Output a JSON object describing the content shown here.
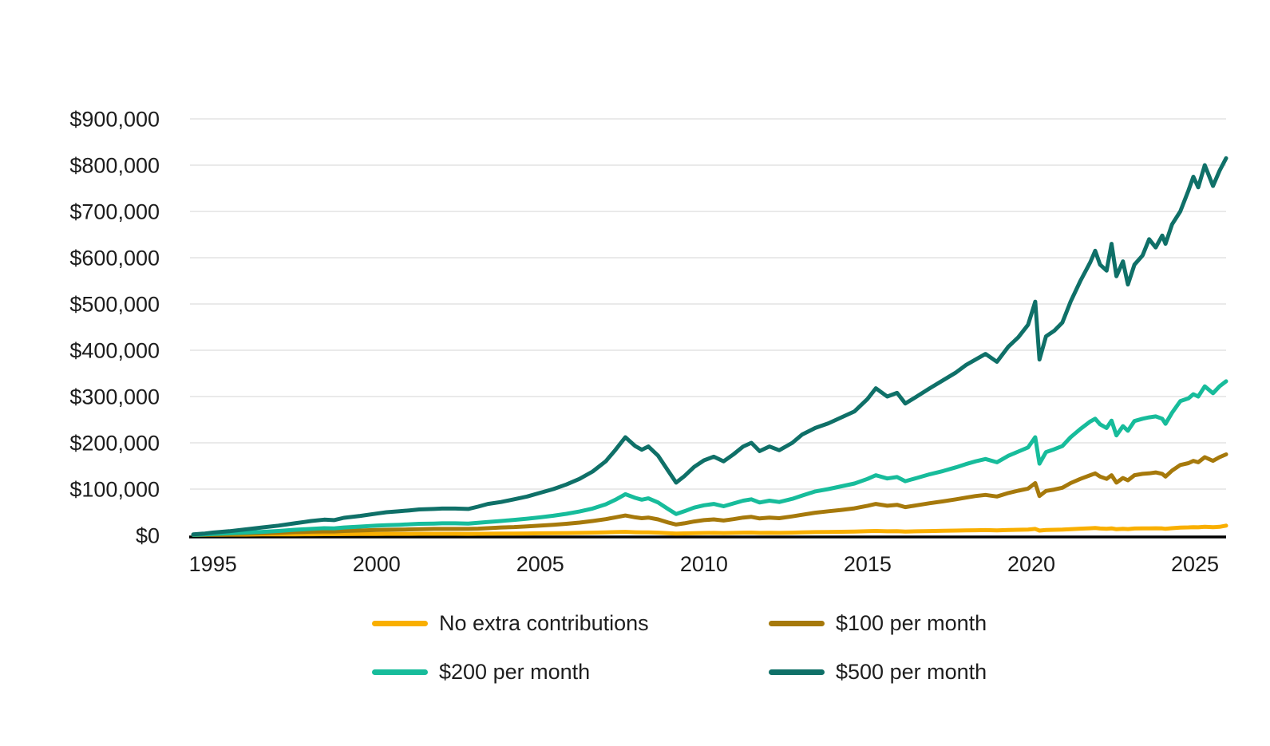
{
  "chart_data": {
    "type": "line",
    "title": "",
    "xlabel": "",
    "ylabel": "",
    "grid": "horizontal",
    "legend_position": "bottom",
    "x_axis": {
      "range": [
        1994.3,
        2025.95
      ],
      "ticks": [
        1995,
        2000,
        2005,
        2010,
        2015,
        2020,
        2025
      ],
      "tick_labels": [
        "1995",
        "2000",
        "2005",
        "2010",
        "2015",
        "2020",
        "2025"
      ]
    },
    "y_axis": {
      "range": [
        0,
        900000
      ],
      "tick_values": [
        0,
        100000,
        200000,
        300000,
        400000,
        500000,
        600000,
        700000,
        800000,
        900000
      ],
      "tick_labels": [
        "$0",
        "$100,000",
        "$200,000",
        "$300,000",
        "$400,000",
        "$500,000",
        "$600,000",
        "$700,000",
        "$800,000",
        "$900,000"
      ]
    },
    "x": [
      1994.4,
      1994.75,
      1995,
      1995.5,
      1996,
      1996.5,
      1997,
      1997.5,
      1998,
      1998.4,
      1998.7,
      1999,
      1999.5,
      2000,
      2000.3,
      2000.7,
      2001,
      2001.3,
      2001.75,
      2002,
      2002.4,
      2002.8,
      2003.1,
      2003.4,
      2003.8,
      2004.2,
      2004.6,
      2005,
      2005.4,
      2005.8,
      2006.2,
      2006.6,
      2007,
      2007.3,
      2007.6,
      2007.9,
      2008.1,
      2008.3,
      2008.6,
      2008.9,
      2009.15,
      2009.4,
      2009.7,
      2010,
      2010.3,
      2010.6,
      2010.9,
      2011.2,
      2011.45,
      2011.7,
      2012,
      2012.3,
      2012.7,
      2013,
      2013.4,
      2013.8,
      2014.2,
      2014.6,
      2015,
      2015.25,
      2015.6,
      2015.9,
      2016.15,
      2016.5,
      2016.9,
      2017.3,
      2017.7,
      2018,
      2018.3,
      2018.6,
      2018.95,
      2019.3,
      2019.6,
      2019.9,
      2020.12,
      2020.25,
      2020.45,
      2020.7,
      2020.95,
      2021.2,
      2021.5,
      2021.8,
      2021.95,
      2022.1,
      2022.3,
      2022.45,
      2022.6,
      2022.8,
      2022.95,
      2023.15,
      2023.4,
      2023.6,
      2023.8,
      2024,
      2024.1,
      2024.3,
      2024.55,
      2024.8,
      2024.95,
      2025.1,
      2025.3,
      2025.55,
      2025.75,
      2025.95
    ],
    "series": [
      {
        "name": "No extra contributions",
        "color": "#F9AF00",
        "values": [
          1200,
          1300,
          1500,
          1700,
          1800,
          2000,
          2100,
          2300,
          2400,
          2500,
          2500,
          2700,
          2900,
          3100,
          3200,
          3300,
          3300,
          3400,
          3400,
          3400,
          3400,
          3300,
          3400,
          3600,
          3800,
          4000,
          4200,
          4400,
          4700,
          5000,
          5400,
          5900,
          6500,
          7000,
          7600,
          6800,
          6400,
          6600,
          5800,
          4700,
          3900,
          4300,
          4800,
          5200,
          5400,
          5000,
          5400,
          5800,
          6000,
          5400,
          5700,
          5400,
          5900,
          6400,
          7000,
          7400,
          7800,
          8200,
          8900,
          9400,
          8800,
          9000,
          8300,
          8800,
          9300,
          9800,
          10300,
          10700,
          11000,
          11300,
          10700,
          11600,
          12100,
          12600,
          14000,
          10400,
          11700,
          12000,
          12400,
          13500,
          14500,
          15400,
          15800,
          14900,
          14200,
          15100,
          13200,
          14300,
          13600,
          14800,
          15100,
          15200,
          15300,
          15000,
          14200,
          15600,
          16900,
          17300,
          17800,
          17400,
          18600,
          17600,
          18500,
          21000
        ]
      },
      {
        "name": "$100 per month",
        "color": "#A6790B",
        "values": [
          1000,
          1500,
          2000,
          3000,
          3500,
          4500,
          5500,
          7000,
          8000,
          8500,
          8500,
          9500,
          10500,
          11500,
          12000,
          12500,
          13000,
          13500,
          14000,
          14000,
          14000,
          14000,
          14500,
          15500,
          17000,
          18000,
          19500,
          21000,
          23000,
          25000,
          27500,
          31000,
          35000,
          39000,
          43000,
          39000,
          37000,
          38500,
          34500,
          28000,
          23500,
          26000,
          30000,
          33000,
          34500,
          32000,
          35000,
          38500,
          40000,
          36500,
          38500,
          37000,
          41000,
          44500,
          49000,
          52000,
          55000,
          58500,
          64000,
          68000,
          64000,
          66000,
          61000,
          65000,
          69500,
          73500,
          78000,
          81500,
          85000,
          87500,
          84000,
          91500,
          96500,
          101000,
          113000,
          85000,
          96000,
          99000,
          103000,
          113000,
          122000,
          130000,
          134000,
          127000,
          122000,
          130000,
          114000,
          124000,
          119000,
          130000,
          133000,
          134000,
          136000,
          133000,
          127000,
          140000,
          152000,
          156000,
          161000,
          158000,
          169000,
          161000,
          169000,
          175000
        ]
      },
      {
        "name": "$200 per month",
        "color": "#17BC9B",
        "values": [
          1000,
          2000,
          3000,
          4500,
          6000,
          7500,
          9500,
          12000,
          14000,
          15500,
          15000,
          17000,
          19000,
          21000,
          22000,
          23000,
          24000,
          25000,
          25500,
          26000,
          26000,
          25500,
          27000,
          29000,
          31000,
          33500,
          36000,
          39000,
          42500,
          46500,
          51500,
          58000,
          67000,
          77000,
          89000,
          81000,
          77000,
          80000,
          71000,
          57000,
          46000,
          52000,
          60000,
          65000,
          68000,
          63000,
          69000,
          75000,
          78000,
          71000,
          75000,
          72000,
          79000,
          86000,
          95000,
          100000,
          106000,
          112000,
          122000,
          130000,
          123000,
          126000,
          117000,
          124000,
          132000,
          139000,
          147000,
          154000,
          160000,
          165000,
          158000,
          172000,
          181000,
          190000,
          212000,
          155000,
          180000,
          186000,
          193000,
          212000,
          230000,
          246000,
          252000,
          240000,
          232000,
          248000,
          216000,
          236000,
          226000,
          247000,
          252000,
          255000,
          257000,
          252000,
          241000,
          265000,
          290000,
          296000,
          305000,
          300000,
          322000,
          307000,
          322000,
          333000
        ]
      },
      {
        "name": "$500 per month",
        "color": "#0F7068",
        "values": [
          2000,
          4000,
          6000,
          9000,
          13000,
          17000,
          21000,
          26000,
          31000,
          34000,
          33000,
          38000,
          42000,
          47000,
          50000,
          52000,
          54000,
          56000,
          57000,
          58000,
          58000,
          57000,
          62000,
          68000,
          72000,
          78000,
          84000,
          92000,
          100000,
          110000,
          122000,
          138000,
          160000,
          185000,
          212000,
          193000,
          185000,
          192000,
          172000,
          140000,
          114000,
          128000,
          148000,
          162000,
          170000,
          160000,
          175000,
          192000,
          200000,
          182000,
          192000,
          184000,
          200000,
          218000,
          232000,
          242000,
          255000,
          268000,
          295000,
          318000,
          300000,
          308000,
          285000,
          300000,
          318000,
          335000,
          352000,
          368000,
          380000,
          392000,
          375000,
          408000,
          428000,
          455000,
          505000,
          380000,
          430000,
          442000,
          460000,
          505000,
          550000,
          590000,
          615000,
          585000,
          572000,
          630000,
          560000,
          592000,
          542000,
          585000,
          605000,
          640000,
          622000,
          648000,
          630000,
          672000,
          700000,
          745000,
          775000,
          752000,
          800000,
          755000,
          788000,
          815000
        ]
      }
    ],
    "colors": {
      "grid": "#E3E3E3",
      "axis": "#000000",
      "tick_text": "#1C1C1C"
    }
  },
  "legend": {
    "items": [
      {
        "label": "No extra contributions"
      },
      {
        "label": "$100 per month"
      },
      {
        "label": "$200 per month"
      },
      {
        "label": "$500 per month"
      }
    ]
  }
}
